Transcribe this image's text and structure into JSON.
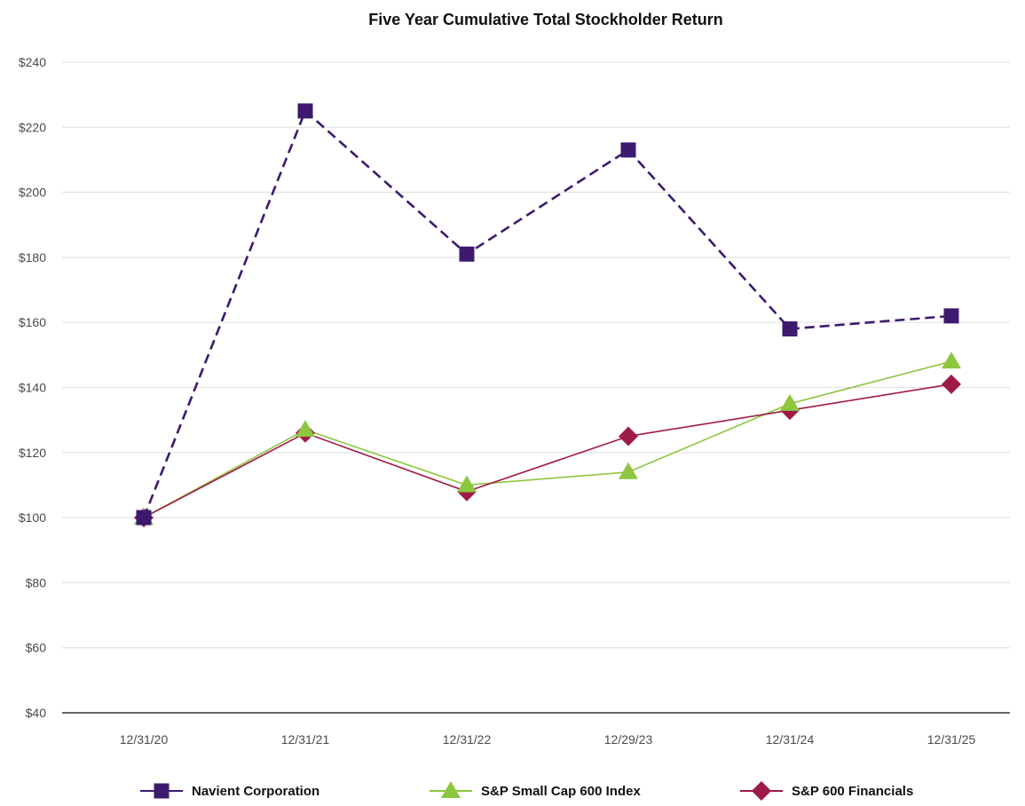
{
  "chart_data": {
    "type": "line",
    "title": "Five Year Cumulative Total Stockholder Return",
    "xlabel": "",
    "ylabel": "",
    "categories": [
      "12/31/20",
      "12/31/21",
      "12/31/22",
      "12/29/23",
      "12/31/24",
      "12/31/25"
    ],
    "ylim": [
      40,
      240
    ],
    "yticks": [
      40,
      60,
      80,
      100,
      120,
      140,
      160,
      180,
      200,
      220,
      240
    ],
    "ytick_labels": [
      "$40",
      "$60",
      "$80",
      "$100",
      "$120",
      "$140",
      "$160",
      "$180",
      "$200",
      "$220",
      "$240"
    ],
    "grid": true,
    "legend_position": "bottom",
    "series": [
      {
        "name": "Navient Corporation",
        "values": [
          100,
          225,
          181,
          213,
          158,
          162
        ],
        "color": "#3d1a6e",
        "marker": "square",
        "line_style": "dashed"
      },
      {
        "name": "S&P Small Cap 600 Index",
        "values": [
          100,
          127,
          110,
          114,
          135,
          148
        ],
        "color": "#8dc63f",
        "marker": "triangle",
        "line_style": "solid"
      },
      {
        "name": "S&P 600 Financials",
        "values": [
          100,
          126,
          108,
          125,
          133,
          141
        ],
        "color": "#9e1b46",
        "marker": "diamond",
        "line_style": "solid"
      }
    ]
  }
}
